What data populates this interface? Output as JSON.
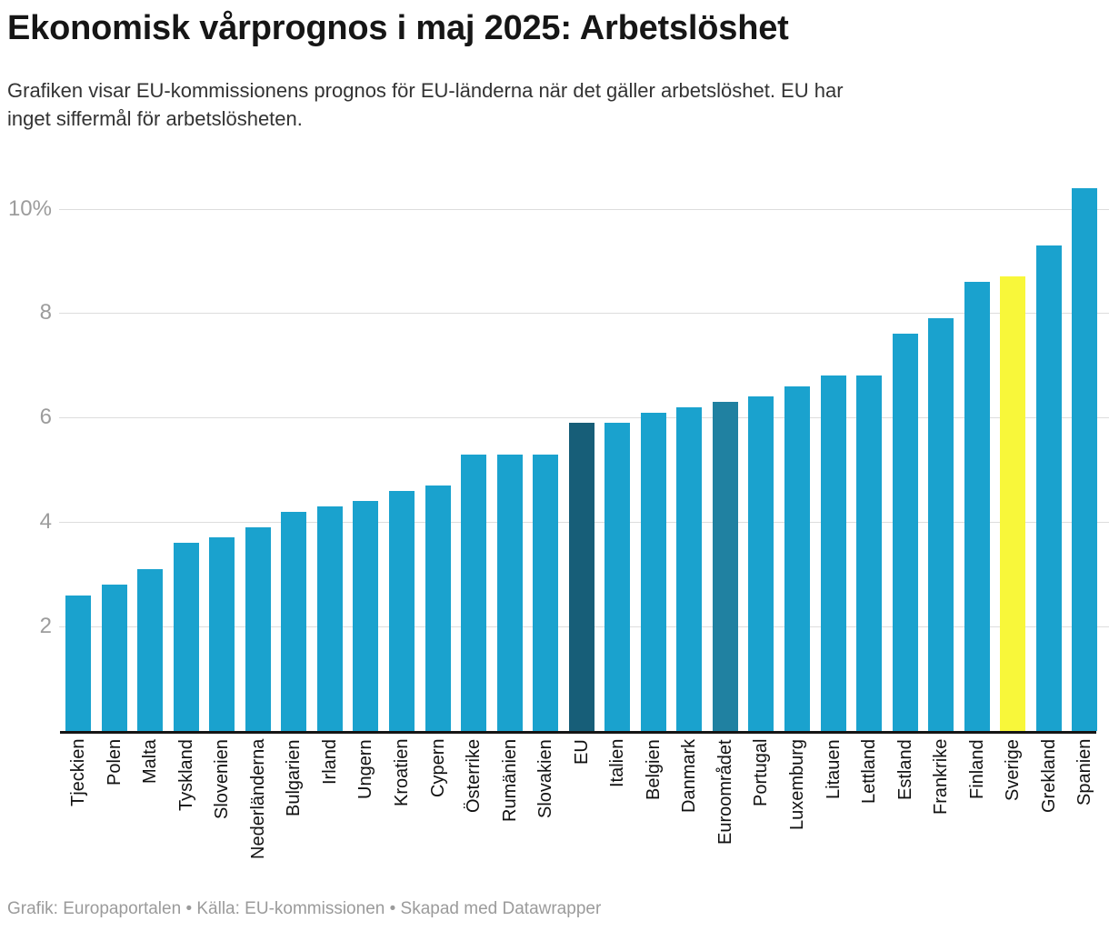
{
  "chart_data": {
    "type": "bar",
    "title": "Ekonomisk vårprognos i maj 2025: Arbetslöshet",
    "subtitle_lines": [
      "Grafiken visar EU-kommissionens prognos för EU-länderna när det gäller arbetslöshet. EU har",
      "inget siffermål för arbetslösheten."
    ],
    "categories": [
      "Tjeckien",
      "Polen",
      "Malta",
      "Tyskland",
      "Slovenien",
      "Nederländerna",
      "Bulgarien",
      "Irland",
      "Ungern",
      "Kroatien",
      "Cypern",
      "Österrike",
      "Rumänien",
      "Slovakien",
      "EU",
      "Italien",
      "Belgien",
      "Danmark",
      "Euroområdet",
      "Portugal",
      "Luxemburg",
      "Litauen",
      "Lettland",
      "Estland",
      "Frankrike",
      "Finland",
      "Sverige",
      "Grekland",
      "Spanien"
    ],
    "values": [
      2.6,
      2.8,
      3.1,
      3.6,
      3.7,
      3.9,
      4.2,
      4.3,
      4.4,
      4.6,
      4.7,
      5.3,
      5.3,
      5.3,
      5.9,
      5.9,
      6.1,
      6.2,
      6.3,
      6.4,
      6.6,
      6.8,
      6.8,
      7.6,
      7.9,
      8.6,
      8.7,
      9.3,
      10.4
    ],
    "unit": "%",
    "xlabel": "",
    "ylabel": "",
    "ylim": [
      0,
      10.75
    ],
    "yticks": [
      {
        "value": 2,
        "label": "2"
      },
      {
        "value": 4,
        "label": "4"
      },
      {
        "value": 6,
        "label": "6"
      },
      {
        "value": 8,
        "label": "8"
      },
      {
        "value": 10,
        "label": "10%"
      }
    ],
    "grid": "horizontal",
    "legend": "none",
    "colors": {
      "default": "#1aa2ce",
      "highlights": {
        "EU": "#175e78",
        "Euroområdet": "#2081a1",
        "Sverige": "#f8f73a"
      }
    }
  },
  "footer": {
    "text": "Grafik: Europaportalen • Källa: EU-kommissionen • Skapad med Datawrapper"
  }
}
